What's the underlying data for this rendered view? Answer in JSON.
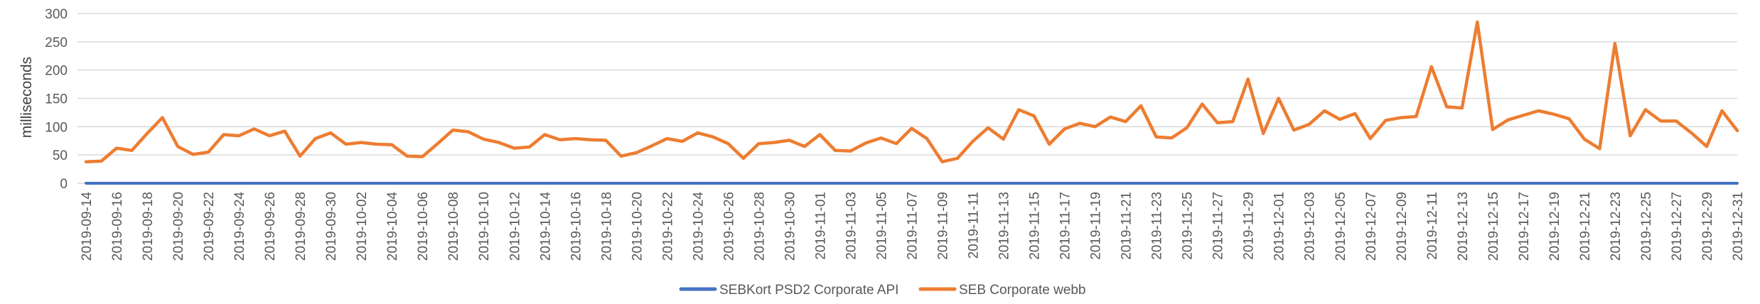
{
  "chart_data": {
    "type": "line",
    "title": "",
    "xlabel": "",
    "ylabel": "milliseconds",
    "ylim": [
      0,
      300
    ],
    "yticks": [
      0,
      50,
      100,
      150,
      200,
      250,
      300
    ],
    "grid": true,
    "legend": "bottom",
    "start_date": "2019-09-14",
    "x_tick_labels": [
      "2019-09-14",
      "2019-09-16",
      "2019-09-18",
      "2019-09-20",
      "2019-09-22",
      "2019-09-24",
      "2019-09-26",
      "2019-09-28",
      "2019-09-30",
      "2019-10-02",
      "2019-10-04",
      "2019-10-06",
      "2019-10-08",
      "2019-10-10",
      "2019-10-12",
      "2019-10-14",
      "2019-10-16",
      "2019-10-18",
      "2019-10-20",
      "2019-10-22",
      "2019-10-24",
      "2019-10-26",
      "2019-10-28",
      "2019-10-30",
      "2019-11-01",
      "2019-11-03",
      "2019-11-05",
      "2019-11-07",
      "2019-11-09",
      "2019-11-11",
      "2019-11-13",
      "2019-11-15",
      "2019-11-17",
      "2019-11-19",
      "2019-11-21",
      "2019-11-23",
      "2019-11-25",
      "2019-11-27",
      "2019-11-29",
      "2019-12-01",
      "2019-12-03",
      "2019-12-05",
      "2019-12-07",
      "2019-12-09",
      "2019-12-11",
      "2019-12-13",
      "2019-12-15",
      "2019-12-17",
      "2019-12-19",
      "2019-12-21",
      "2019-12-23",
      "2019-12-25",
      "2019-12-27",
      "2019-12-29",
      "2019-12-31"
    ],
    "series": [
      {
        "name": "SEBKort PSD2 Corporate API",
        "color": "#4472c4",
        "values": [
          0,
          0,
          0,
          0,
          0,
          0,
          0,
          0,
          0,
          0,
          0,
          0,
          0,
          0,
          0,
          0,
          0,
          0,
          0,
          0,
          0,
          0,
          0,
          0,
          0,
          0,
          0,
          0,
          0,
          0,
          0,
          0,
          0,
          0,
          0,
          0,
          0,
          0,
          0,
          0,
          0,
          0,
          0,
          0,
          0,
          0,
          0,
          0,
          0,
          0,
          0,
          0,
          0,
          0,
          0,
          0,
          0,
          0,
          0,
          0,
          0,
          0,
          0,
          0,
          0,
          0,
          0,
          0,
          0,
          0,
          0,
          0,
          0,
          0,
          0,
          0,
          0,
          0,
          0,
          0,
          0,
          0,
          0,
          0,
          0,
          0,
          0,
          0,
          0,
          0,
          0,
          0,
          0,
          0,
          0,
          0,
          0,
          0,
          0,
          0,
          0,
          0,
          0,
          0,
          0,
          0,
          0,
          0,
          0
        ]
      },
      {
        "name": "SEB Corporate webb",
        "color": "#ed7d31",
        "values": [
          38,
          39,
          62,
          58,
          88,
          116,
          65,
          51,
          55,
          86,
          84,
          96,
          84,
          92,
          48,
          79,
          89,
          69,
          72,
          69,
          68,
          48,
          47,
          70,
          94,
          91,
          78,
          72,
          62,
          64,
          86,
          77,
          79,
          77,
          76,
          48,
          54,
          66,
          79,
          74,
          89,
          82,
          70,
          44,
          70,
          72,
          76,
          65,
          86,
          58,
          57,
          71,
          80,
          70,
          97,
          79,
          38,
          44,
          74,
          98,
          78,
          130,
          119,
          69,
          96,
          106,
          100,
          117,
          109,
          137,
          82,
          80,
          98,
          140,
          107,
          109,
          184,
          88,
          150,
          94,
          104,
          128,
          113,
          123,
          79,
          111,
          116,
          118,
          206,
          135,
          133,
          285,
          95,
          112,
          120,
          128,
          122,
          114,
          78,
          61,
          247,
          84,
          130,
          110,
          110,
          89,
          65,
          128,
          93
        ]
      }
    ]
  }
}
